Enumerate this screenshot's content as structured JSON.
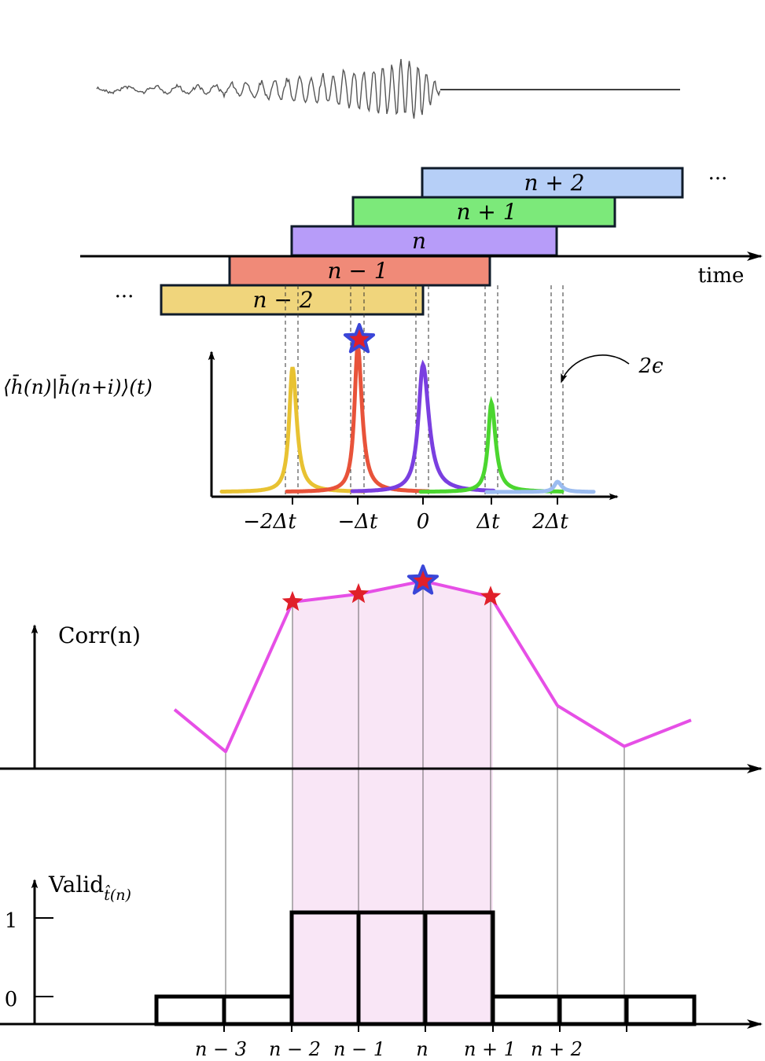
{
  "top_section": {
    "segment_labels": [
      "n − 2",
      "n − 1",
      "n",
      "n + 1",
      "n + 2"
    ],
    "segment_colors": [
      "#f0d57c",
      "#f08a78",
      "#b79cf9",
      "#7ce97a",
      "#b6cff7"
    ],
    "time_label": "time",
    "ellipsis_left": "···",
    "ellipsis_right": "···"
  },
  "overlap_plot": {
    "ylabel": "⟨h̄(n)|h̄(n+i)⟩(t)",
    "tick_labels": [
      "−2Δt",
      "−Δt",
      "0",
      "Δt",
      "2Δt"
    ],
    "epsilon_label": "2ϵ",
    "peak_colors": [
      "#e8c232",
      "#e8533a",
      "#7a3fe0",
      "#4bd62f",
      "#9bbcf0"
    ],
    "peak_heights": [
      0.98,
      1.15,
      1.0,
      0.7,
      0.08
    ]
  },
  "corr_plot": {
    "ylabel": "Corr(n)",
    "line_color": "#e64fe6",
    "shade_color": "#f9e6f6",
    "values": [
      0.45,
      0.13,
      1.27,
      1.33,
      1.43,
      1.31,
      0.48,
      0.17,
      0.37
    ],
    "starred_indices": [
      2,
      3,
      4,
      5
    ],
    "best_index": 4
  },
  "valid_plot": {
    "ylabel": "Valid",
    "ylabel_sub": "t̂(n)",
    "ytick_labels": [
      "1",
      "0"
    ],
    "xtick_labels": [
      "n − 3",
      "n − 2",
      "n − 1",
      "n",
      "n + 1",
      "n + 2"
    ],
    "values": [
      0,
      0,
      1,
      1,
      1,
      0,
      0,
      0
    ]
  }
}
